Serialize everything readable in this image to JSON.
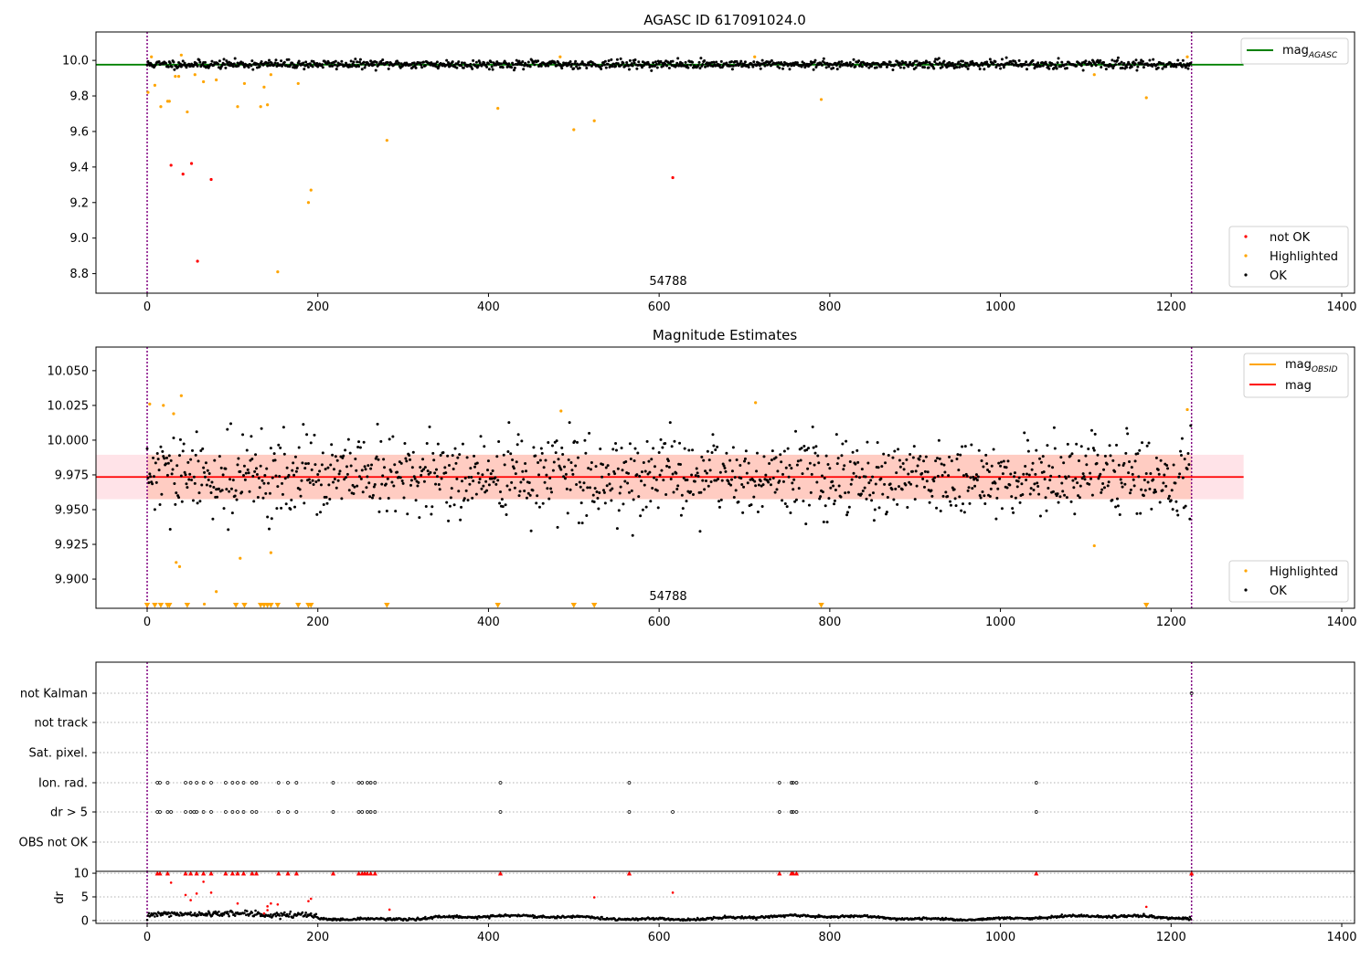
{
  "chart_data": [
    {
      "type": "scatter",
      "title": "AGASC ID 617091024.0",
      "xlabel": "",
      "ylabel": "",
      "xlim": [
        -60,
        1415
      ],
      "ylim": [
        8.69,
        10.16
      ],
      "xticks": [
        0,
        200,
        400,
        600,
        800,
        1000,
        1200,
        1400
      ],
      "yticks": [
        8.8,
        9.0,
        9.2,
        9.4,
        9.6,
        9.8,
        10.0
      ],
      "ytick_labels": [
        "8.8",
        "9.0",
        "9.2",
        "9.4",
        "9.6",
        "9.8",
        "10.0"
      ],
      "grid": false,
      "vlines": [
        0,
        1224
      ],
      "annotation": "54788",
      "line_series": [
        {
          "name": "mag$_{AGASC}$",
          "label_main": "mag",
          "label_sub": "AGASC",
          "y": 9.976,
          "x_range": [
            -60,
            1285
          ],
          "color": "#008000"
        }
      ],
      "band": {
        "center": 9.978,
        "spread": 0.012,
        "count": 1224,
        "x_range": [
          0,
          1224
        ],
        "color": "#000000"
      },
      "series": [
        {
          "name": "not OK",
          "color": "#ff0000",
          "points": [
            [
              28,
              9.41
            ],
            [
              42,
              9.36
            ],
            [
              52,
              9.42
            ],
            [
              59,
              8.87
            ],
            [
              75,
              9.33
            ],
            [
              616,
              9.34
            ]
          ]
        },
        {
          "name": "Highlighted",
          "color": "#ffa500",
          "points": [
            [
              1,
              9.82
            ],
            [
              9,
              9.86
            ],
            [
              16,
              9.74
            ],
            [
              24,
              9.77
            ],
            [
              26,
              9.77
            ],
            [
              33,
              9.91
            ],
            [
              37,
              9.91
            ],
            [
              47,
              9.71
            ],
            [
              56,
              9.92
            ],
            [
              66,
              9.88
            ],
            [
              81,
              9.89
            ],
            [
              106,
              9.74
            ],
            [
              114,
              9.87
            ],
            [
              133,
              9.74
            ],
            [
              137,
              9.85
            ],
            [
              141,
              9.75
            ],
            [
              145,
              9.92
            ],
            [
              153,
              8.81
            ],
            [
              177,
              9.87
            ],
            [
              189,
              9.2
            ],
            [
              192,
              9.27
            ],
            [
              281,
              9.55
            ],
            [
              411,
              9.73
            ],
            [
              500,
              9.61
            ],
            [
              524,
              9.66
            ],
            [
              790,
              9.78
            ],
            [
              1110,
              9.92
            ],
            [
              1171,
              9.79
            ],
            [
              5,
              10.02
            ],
            [
              40,
              10.03
            ],
            [
              484,
              10.02
            ],
            [
              712,
              10.02
            ],
            [
              1219,
              10.02
            ]
          ]
        },
        {
          "name": "OK",
          "color": "#000000",
          "points": []
        }
      ],
      "legends": [
        {
          "placement": "upper right",
          "items": [
            "mag$_{AGASC}$"
          ]
        },
        {
          "placement": "lower right",
          "items": [
            "not OK",
            "Highlighted",
            "OK"
          ]
        }
      ]
    },
    {
      "type": "scatter",
      "title": "Magnitude Estimates",
      "xlabel": "",
      "ylabel": "",
      "xlim": [
        -60,
        1415
      ],
      "ylim": [
        9.879,
        10.067
      ],
      "xticks": [
        0,
        200,
        400,
        600,
        800,
        1000,
        1200,
        1400
      ],
      "yticks": [
        9.9,
        9.925,
        9.95,
        9.975,
        10.0,
        10.025,
        10.05
      ],
      "ytick_labels": [
        "9.900",
        "9.925",
        "9.950",
        "9.975",
        "10.000",
        "10.025",
        "10.050"
      ],
      "grid": false,
      "vlines": [
        0,
        1224
      ],
      "annotation": "54788",
      "line_series": [
        {
          "name": "mag",
          "y": 9.9735,
          "x_range": [
            -60,
            1285
          ],
          "color": "#ff0000"
        }
      ],
      "bands": [
        {
          "y_range": [
            9.9575,
            9.9895
          ],
          "x_range": [
            -60,
            1285
          ],
          "color": "#ffc0cb",
          "opacity": 0.45
        },
        {
          "y_range": [
            9.9575,
            9.9895
          ],
          "x_range": [
            0,
            1224
          ],
          "color": "#ffa07a",
          "opacity": 0.35
        }
      ],
      "band": {
        "center": 9.9735,
        "spread": 0.0145,
        "count": 1224,
        "x_range": [
          0,
          1224
        ],
        "color": "#000000"
      },
      "series": [
        {
          "name": "mag$_{OBSID}$",
          "label_main": "mag",
          "label_sub": "OBSID",
          "color": "#ffa500",
          "points": []
        },
        {
          "name": "Highlighted",
          "color": "#ffa500",
          "points": [
            [
              3,
              10.026
            ],
            [
              19,
              10.025
            ],
            [
              31,
              10.019
            ],
            [
              40,
              10.032
            ],
            [
              34,
              9.912
            ],
            [
              38,
              9.909
            ],
            [
              109,
              9.915
            ],
            [
              145,
              9.919
            ],
            [
              485,
              10.021
            ],
            [
              713,
              10.027
            ],
            [
              1110,
              9.924
            ],
            [
              1219,
              10.022
            ],
            [
              67,
              9.882
            ],
            [
              81,
              9.891
            ]
          ]
        },
        {
          "name": "OK",
          "color": "#000000",
          "points": []
        },
        {
          "name": "below-range",
          "color": "#ffa500",
          "marker": "triangle-down",
          "x": [
            0,
            9,
            16,
            24,
            26,
            47,
            104,
            114,
            133,
            137,
            141,
            145,
            153,
            177,
            189,
            192,
            281,
            411,
            500,
            524,
            790,
            1171
          ]
        }
      ],
      "legends": [
        {
          "placement": "upper right",
          "items": [
            "mag$_{OBSID}$",
            "mag"
          ]
        },
        {
          "placement": "lower right",
          "items": [
            "Highlighted",
            "OK"
          ]
        }
      ]
    },
    {
      "type": "scatter",
      "title": "",
      "xlabel": "",
      "ylabel": "",
      "xlim": [
        -60,
        1415
      ],
      "grid": true,
      "vlines": [
        0,
        1224
      ],
      "flag_rows": [
        "not Kalman",
        "not track",
        "Sat. pixel.",
        "Ion. rad.",
        "dr > 5",
        "OBS not OK"
      ],
      "flag_points": {
        "Ion. rad.": [
          12,
          15,
          24,
          45,
          51,
          58,
          66,
          75,
          92,
          100,
          106,
          113,
          123,
          128,
          154,
          165,
          175,
          218,
          248,
          252,
          258,
          262,
          267,
          414,
          565,
          741,
          755,
          757,
          761,
          1042
        ],
        "dr > 5": [
          12,
          15,
          24,
          28,
          45,
          51,
          55,
          58,
          66,
          75,
          92,
          100,
          106,
          113,
          123,
          128,
          154,
          165,
          175,
          218,
          248,
          252,
          258,
          262,
          267,
          414,
          565,
          616,
          741,
          755,
          757,
          761,
          1042
        ],
        "not Kalman": [
          1224
        ]
      }
    },
    {
      "type": "scatter",
      "title": "",
      "xlabel": "",
      "ylabel": "dr",
      "xlim": [
        -60,
        1415
      ],
      "ylim": [
        -0.6,
        10.4
      ],
      "xticks": [
        0,
        200,
        400,
        600,
        800,
        1000,
        1200,
        1400
      ],
      "yticks": [
        0,
        5,
        10
      ],
      "ytick_labels": [
        "0",
        "5",
        "10"
      ],
      "grid": true,
      "vlines": [
        0,
        1224
      ],
      "series": [
        {
          "name": "dr",
          "color": "#000000",
          "count": 1224,
          "base": 0.6,
          "spread": 0.5
        },
        {
          "name": "dr-outliers",
          "color": "#ff0000",
          "points": [
            [
              28,
              8.0
            ],
            [
              45,
              5.4
            ],
            [
              51,
              4.3
            ],
            [
              58,
              5.7
            ],
            [
              66,
              8.2
            ],
            [
              75,
              5.9
            ],
            [
              106,
              3.6
            ],
            [
              141,
              3.0
            ],
            [
              145,
              3.6
            ],
            [
              153,
              3.4
            ],
            [
              189,
              4.1
            ],
            [
              192,
              4.6
            ],
            [
              524,
              4.9
            ],
            [
              616,
              5.9
            ],
            [
              141,
              2.2
            ],
            [
              137,
              1.5
            ],
            [
              284,
              2.3
            ],
            [
              1171,
              2.9
            ]
          ]
        },
        {
          "name": "dr-capped",
          "color": "#ff0000",
          "marker": "triangle-up",
          "x": [
            12,
            15,
            24,
            45,
            51,
            58,
            66,
            75,
            92,
            100,
            106,
            113,
            123,
            128,
            154,
            165,
            175,
            218,
            248,
            252,
            255,
            258,
            262,
            267,
            414,
            565,
            741,
            755,
            757,
            761,
            1042,
            1224
          ]
        }
      ]
    }
  ]
}
